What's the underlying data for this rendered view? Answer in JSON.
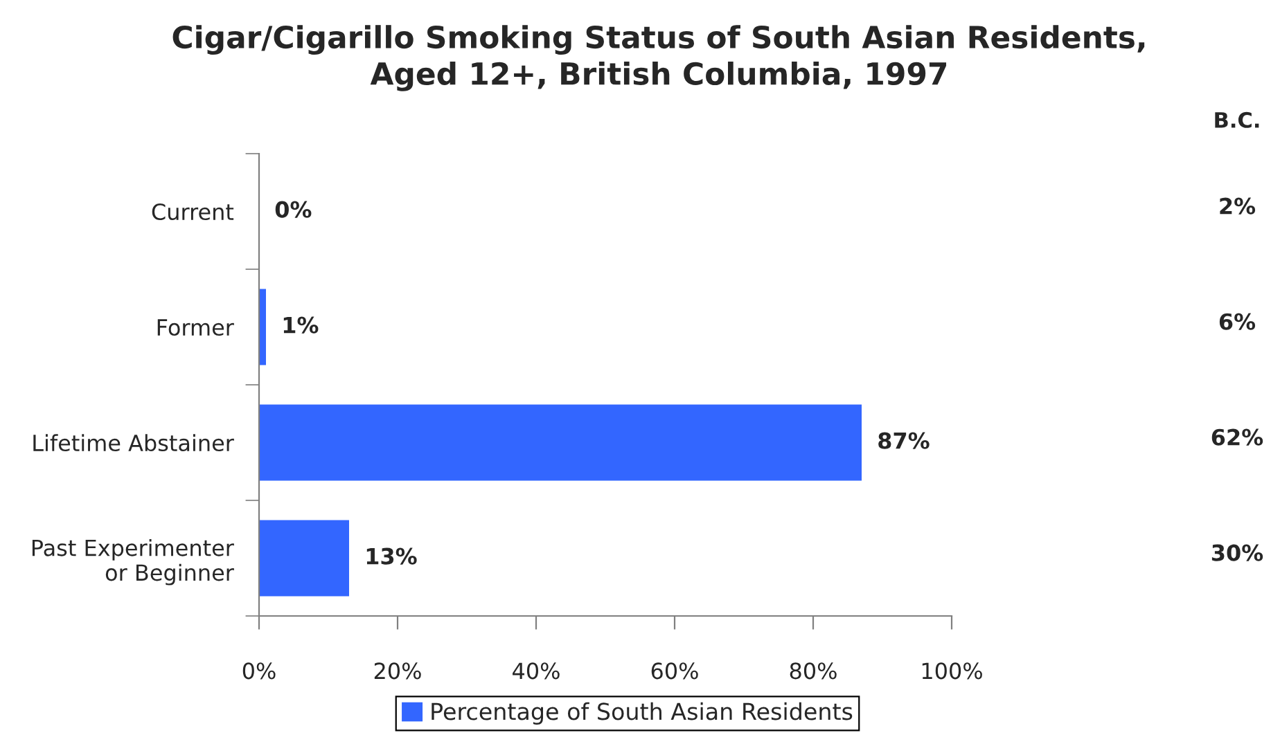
{
  "chart_data": {
    "type": "bar",
    "orientation": "horizontal",
    "title": "Cigar/Cigarillo Smoking Status of South Asian Residents,\nAged 12+, British Columbia, 1997",
    "categories": [
      "Current",
      "Former",
      "Lifetime Abstainer",
      "Past Experimenter\nor Beginner"
    ],
    "series": [
      {
        "name": "Percentage of South Asian Residents",
        "color": "#3366ff",
        "values": [
          0,
          1,
          87,
          13
        ],
        "value_labels": [
          "0%",
          "1%",
          "87%",
          "13%"
        ]
      }
    ],
    "xlim": [
      0,
      100
    ],
    "xticks": [
      {
        "value": 0,
        "label": "0%"
      },
      {
        "value": 20,
        "label": "20%"
      },
      {
        "value": 40,
        "label": "40%"
      },
      {
        "value": 60,
        "label": "60%"
      },
      {
        "value": 80,
        "label": "80%"
      },
      {
        "value": 100,
        "label": "100%"
      }
    ],
    "legend": "bottom",
    "annotations": [
      "B.C.",
      "2%",
      "6%",
      "62%",
      "30%"
    ]
  }
}
